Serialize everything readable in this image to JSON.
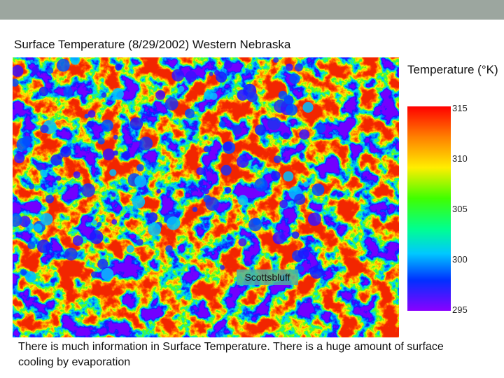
{
  "header": {
    "title": "Surface Temperature (8/29/2002) Western Nebraska"
  },
  "legend": {
    "title": "Temperature (°K)",
    "ticks": [
      "315",
      "310",
      "305",
      "300",
      "295"
    ]
  },
  "map": {
    "label": "Scottsbluff"
  },
  "caption": "There is much information in Surface Temperature. There is a huge amount of surface cooling by evaporation"
}
